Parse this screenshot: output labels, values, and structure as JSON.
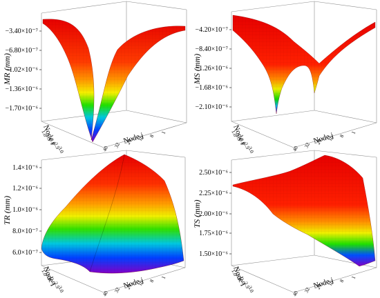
{
  "chart_data": [
    {
      "id": "MR",
      "type": "surface",
      "title": "",
      "zlabel": "MR (mm)",
      "xlabel": "Node i",
      "ylabel": "Node j",
      "z_ticks": [
        "−3.40×10⁻⁷",
        "−6.80×10⁻⁷",
        "−1.02×10⁻⁶",
        "−1.36×10⁻⁶",
        "−1.70×10⁻⁶"
      ],
      "z_values": [
        -3.4e-07,
        -6.8e-07,
        -1.02e-06,
        -1.36e-06,
        -1.7e-06
      ],
      "zlim": [
        -1.75e-06,
        -1.5e-07
      ],
      "i_ticks": [
        "1.0",
        "1.5",
        "2.0",
        "2.5",
        "3.0"
      ],
      "j_ticks": [
        "40",
        "32",
        "24",
        "16",
        "8",
        "1"
      ],
      "surface_shape": "sharp V-shaped trough with minimum near the center node",
      "grid": true
    },
    {
      "id": "MS",
      "type": "surface",
      "title": "",
      "zlabel": "MS (mm)",
      "xlabel": "Node i",
      "ylabel": "Node j",
      "z_ticks": [
        "−4.20×10⁻⁷",
        "−8.40×10⁻⁷",
        "−1.26×10⁻⁶",
        "−1.68×10⁻⁶",
        "−2.10×10⁻⁶"
      ],
      "z_values": [
        -4.2e-07,
        -8.4e-07,
        -1.26e-06,
        -1.68e-06,
        -2.1e-06
      ],
      "zlim": [
        -2.2e-06,
        -2e-07
      ],
      "i_ticks": [
        "1.0",
        "1.5",
        "2.0",
        "2.5",
        "3.0"
      ],
      "j_ticks": [
        "40",
        "32",
        "24",
        "16",
        "8",
        "1"
      ],
      "surface_shape": "shallow inverted sheet with two narrow deep troughs",
      "grid": true
    },
    {
      "id": "TR",
      "type": "surface",
      "title": "",
      "zlabel": "TR (mm)",
      "xlabel": "Node i",
      "ylabel": "Node j",
      "z_ticks": [
        "1.4×10⁻⁶",
        "1.2×10⁻⁶",
        "1.0×10⁻⁶",
        "8.0×10⁻⁷",
        "6.0×10⁻⁷"
      ],
      "z_values": [
        1.4e-06,
        1.2e-06,
        1e-06,
        8e-07,
        6e-07
      ],
      "zlim": [
        5.5e-07,
        1.45e-06
      ],
      "i_ticks": [
        "1.0",
        "1.5",
        "2.0",
        "2.5",
        "3.0"
      ],
      "j_ticks": [
        "40",
        "32",
        "24",
        "16",
        "8",
        "1"
      ],
      "surface_shape": "pyramid-like peak at the far corner",
      "grid": true
    },
    {
      "id": "TS",
      "type": "surface",
      "title": "",
      "zlabel": "TS (mm)",
      "xlabel": "Node i",
      "ylabel": "Node j",
      "z_ticks": [
        "2.50×10⁻⁶",
        "2.25×10⁻⁶",
        "2.00×10⁻⁶",
        "1.75×10⁻⁶",
        "1.50×10⁻⁶"
      ],
      "z_values": [
        2.5e-06,
        2.25e-06,
        2e-06,
        1.75e-06,
        1.5e-06
      ],
      "zlim": [
        1.4e-06,
        2.6e-06
      ],
      "i_ticks": [
        "1.0",
        "1.5",
        "2.0",
        "2.5",
        "3.0"
      ],
      "j_ticks": [
        "40",
        "32",
        "24",
        "16",
        "8",
        "1"
      ],
      "surface_shape": "curved sheet descending toward the near corner",
      "grid": true
    }
  ]
}
